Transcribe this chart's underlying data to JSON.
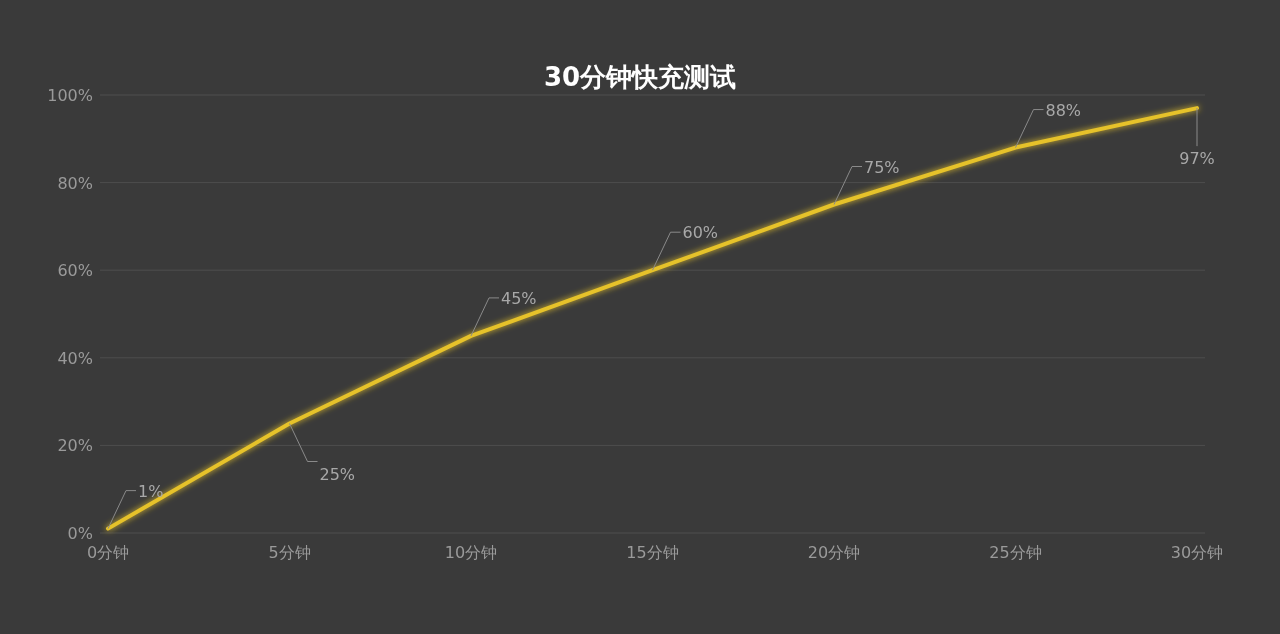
{
  "chart_data": {
    "type": "line",
    "title": "30分钟快充测试",
    "categories": [
      "0分钟",
      "5分钟",
      "10分钟",
      "15分钟",
      "20分钟",
      "25分钟",
      "30分钟"
    ],
    "values": [
      1,
      25,
      45,
      60,
      75,
      88,
      97
    ],
    "value_labels": [
      "1%",
      "25%",
      "45%",
      "60%",
      "75%",
      "88%",
      "97%"
    ],
    "color": "#e6c22a",
    "ylim": [
      0,
      100
    ],
    "yticks": [
      {
        "value": 0,
        "label": "0%"
      },
      {
        "value": 20,
        "label": "20%"
      },
      {
        "value": 40,
        "label": "40%"
      },
      {
        "value": 60,
        "label": "60%"
      },
      {
        "value": 80,
        "label": "80%"
      },
      {
        "value": 100,
        "label": "100%"
      }
    ],
    "grid": "y"
  }
}
